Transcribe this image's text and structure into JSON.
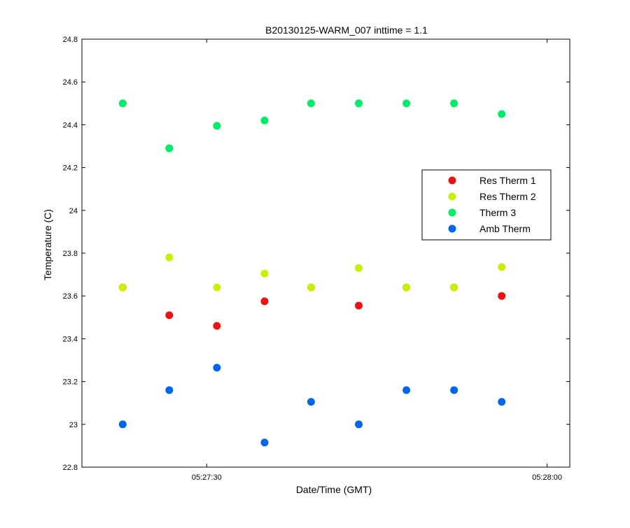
{
  "chart_data": {
    "type": "scatter",
    "title": "B20130125-WARM_007 inttime = 1.1",
    "xlabel": "Date/Time (GMT)",
    "ylabel": "Temperature (C)",
    "xlim": [
      "05:27:19",
      "05:28:02"
    ],
    "ylim": [
      22.8,
      24.8
    ],
    "x_ticks": [
      {
        "value": "05:27:30",
        "label": "05:27:30"
      },
      {
        "value": "05:28:00",
        "label": "05:28:00"
      }
    ],
    "y_ticks": [
      {
        "value": 22.8,
        "label": "22.8"
      },
      {
        "value": 23.0,
        "label": "23"
      },
      {
        "value": 23.2,
        "label": "23.2"
      },
      {
        "value": 23.4,
        "label": "23.4"
      },
      {
        "value": 23.6,
        "label": "23.6"
      },
      {
        "value": 23.8,
        "label": "23.8"
      },
      {
        "value": 24.0,
        "label": "24"
      },
      {
        "value": 24.2,
        "label": "24.2"
      },
      {
        "value": 24.4,
        "label": "24.4"
      },
      {
        "value": 24.6,
        "label": "24.6"
      },
      {
        "value": 24.8,
        "label": "24.8"
      }
    ],
    "grid": false,
    "legend_position": "right",
    "x": [
      "05:27:22.6",
      "05:27:26.7",
      "05:27:30.9",
      "05:27:35.1",
      "05:27:39.2",
      "05:27:43.4",
      "05:27:47.6",
      "05:27:51.8",
      "05:27:56.0"
    ],
    "series": [
      {
        "name": "Res Therm 1",
        "color": "#ee1111",
        "values": [
          23.64,
          23.51,
          23.46,
          23.575,
          23.64,
          23.555,
          23.64,
          23.64,
          23.6
        ]
      },
      {
        "name": "Res Therm 2",
        "color": "#ccee00",
        "values": [
          23.64,
          23.78,
          23.64,
          23.705,
          23.64,
          23.73,
          23.64,
          23.64,
          23.735
        ]
      },
      {
        "name": "Therm 3",
        "color": "#00ee66",
        "values": [
          24.5,
          24.29,
          24.395,
          24.42,
          24.5,
          24.5,
          24.5,
          24.5,
          24.45
        ]
      },
      {
        "name": "Amb Therm",
        "color": "#0066ee",
        "values": [
          23.0,
          23.16,
          23.265,
          22.915,
          23.105,
          23.0,
          23.16,
          23.16,
          23.105
        ]
      }
    ]
  }
}
